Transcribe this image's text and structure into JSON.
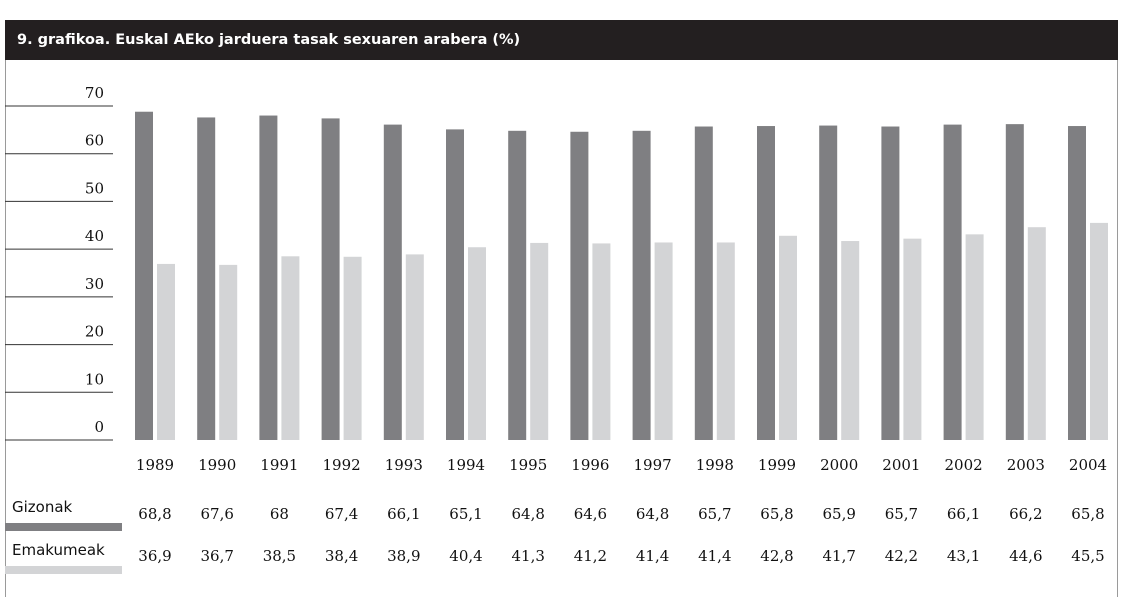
{
  "chart_data": {
    "type": "bar",
    "title": "9. grafikoa. Euskal AEko jarduera tasak sexuaren arabera  (%)",
    "categories": [
      "1989",
      "1990",
      "1991",
      "1992",
      "1993",
      "1994",
      "1995",
      "1996",
      "1997",
      "1998",
      "1999",
      "2000",
      "2001",
      "2002",
      "2003",
      "2004"
    ],
    "yticks": [
      "0",
      "10",
      "20",
      "30",
      "40",
      "50",
      "60",
      "70"
    ],
    "ylim": [
      0,
      70
    ],
    "grid": false,
    "legend_placement": "bottom-left table",
    "series": [
      {
        "name": "Gizonak",
        "color": "#7f7f82",
        "values": [
          68.8,
          67.6,
          68,
          67.4,
          66.1,
          65.1,
          64.8,
          64.6,
          64.8,
          65.7,
          65.8,
          65.9,
          65.7,
          66.1,
          66.2,
          65.8
        ],
        "labels": [
          "68,8",
          "67,6",
          "68",
          "67,4",
          "66,1",
          "65,1",
          "64,8",
          "64,6",
          "64,8",
          "65,7",
          "65,8",
          "65,9",
          "65,7",
          "66,1",
          "66,2",
          "65,8"
        ]
      },
      {
        "name": "Emakumeak",
        "color": "#d3d4d6",
        "values": [
          36.9,
          36.7,
          38.5,
          38.4,
          38.9,
          40.4,
          41.3,
          41.2,
          41.4,
          41.4,
          42.8,
          41.7,
          42.2,
          43.1,
          44.6,
          45.5
        ],
        "labels": [
          "36,9",
          "36,7",
          "38,5",
          "38,4",
          "38,9",
          "40,4",
          "41,3",
          "41,2",
          "41,4",
          "41,4",
          "42,8",
          "41,7",
          "42,2",
          "43,1",
          "44,6",
          "45,5"
        ]
      }
    ]
  }
}
